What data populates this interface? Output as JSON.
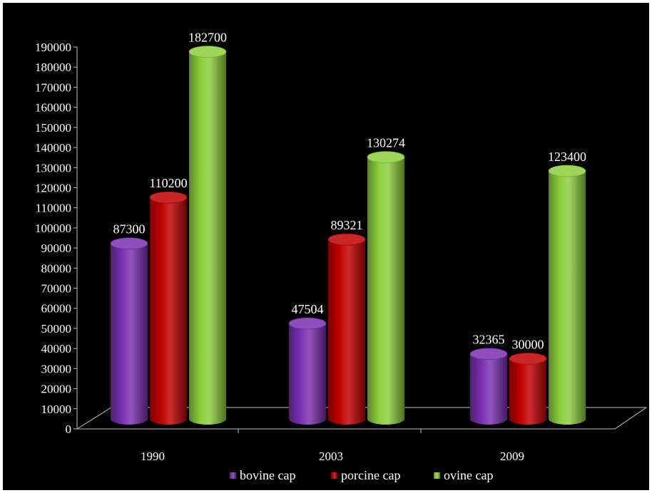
{
  "chart_data": {
    "type": "bar",
    "title": "",
    "xlabel": "",
    "ylabel": "",
    "categories": [
      "1990",
      "2003",
      "2009"
    ],
    "series": [
      {
        "name": "bovine cap",
        "color": "#7a2fb0",
        "values": [
          87300,
          47504,
          32365
        ]
      },
      {
        "name": "porcine cap",
        "color": "#c00000",
        "values": [
          110200,
          89321,
          30000
        ]
      },
      {
        "name": "ovine cap",
        "color": "#8ccd3c",
        "values": [
          182700,
          130274,
          123400
        ]
      }
    ],
    "ylim": [
      0,
      190000
    ],
    "yticks": [
      0,
      10000,
      20000,
      30000,
      40000,
      50000,
      60000,
      70000,
      80000,
      90000,
      100000,
      110000,
      120000,
      130000,
      140000,
      150000,
      160000,
      170000,
      180000,
      190000
    ],
    "grid": false,
    "legend": "bottom",
    "background": "#000000"
  }
}
